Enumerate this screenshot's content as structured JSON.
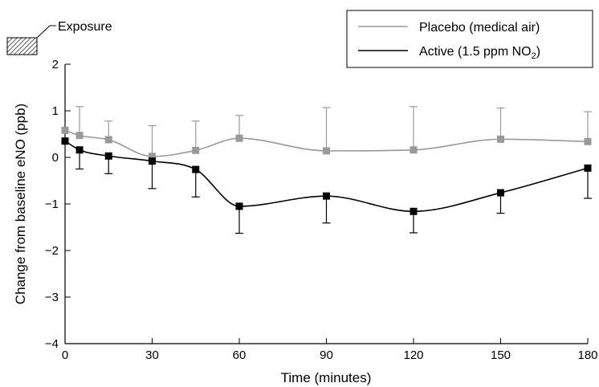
{
  "chart_data": {
    "type": "line",
    "xlabel": "Time (minutes)",
    "ylabel": "Change from baseline eNO (ppb)",
    "xlim": [
      0,
      180
    ],
    "ylim": [
      -4,
      2
    ],
    "x_ticks": [
      0,
      30,
      60,
      90,
      120,
      150,
      180
    ],
    "y_ticks": [
      -4,
      -3,
      -2,
      -1,
      0,
      1,
      2
    ],
    "grid": false,
    "legend_position": "top-right",
    "exposure_label": "Exposure",
    "series": [
      {
        "name": "Placebo (medical air)",
        "color": "#999999",
        "x": [
          0,
          5,
          15,
          30,
          45,
          60,
          90,
          120,
          150,
          180
        ],
        "y": [
          0.58,
          0.47,
          0.38,
          0.02,
          0.15,
          0.41,
          0.14,
          0.16,
          0.39,
          0.34
        ],
        "error": [
          0.0,
          0.62,
          0.4,
          0.66,
          0.63,
          0.49,
          0.93,
          0.93,
          0.67,
          0.64
        ],
        "error_direction": "up"
      },
      {
        "name": "Active (1.5 ppm NO",
        "name_subscript": "2",
        "name_suffix": ")",
        "color": "#000000",
        "x": [
          0,
          5,
          15,
          30,
          45,
          60,
          90,
          120,
          150,
          180
        ],
        "y": [
          0.35,
          0.16,
          0.03,
          -0.08,
          -0.26,
          -1.05,
          -0.83,
          -1.16,
          -0.76,
          -0.23
        ],
        "error": [
          0.0,
          0.41,
          0.38,
          0.59,
          0.59,
          0.58,
          0.58,
          0.46,
          0.44,
          0.65
        ],
        "error_direction": "down"
      }
    ]
  }
}
